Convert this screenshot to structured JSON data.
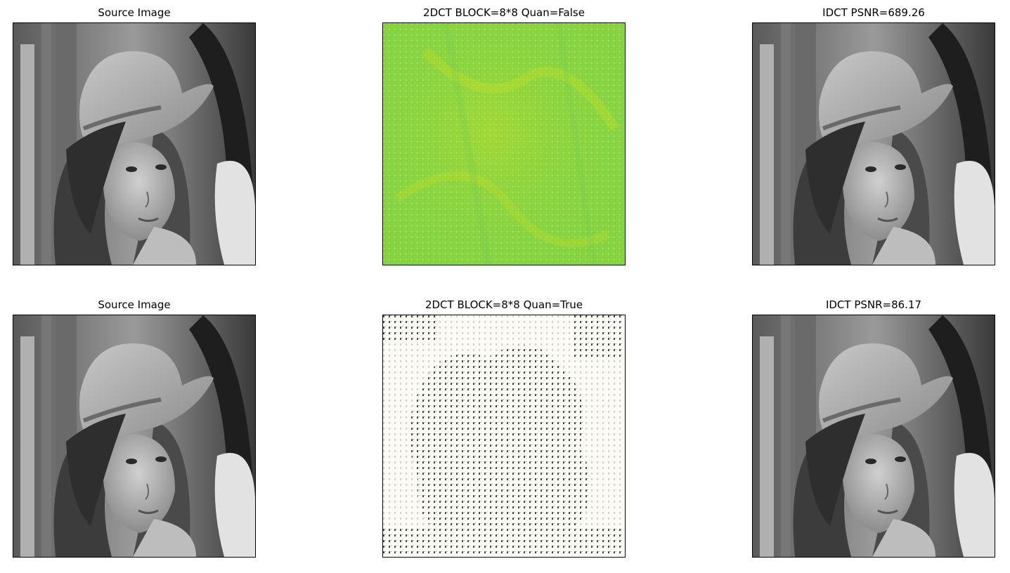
{
  "figure": {
    "panels": [
      {
        "title": "Source Image",
        "kind": "grayscale-photo"
      },
      {
        "title": "2DCT BLOCK=8*8 Quan=False",
        "kind": "dct-coefficients"
      },
      {
        "title": "IDCT PSNR=689.26",
        "kind": "grayscale-photo"
      },
      {
        "title": "Source Image",
        "kind": "grayscale-photo"
      },
      {
        "title": "2DCT BLOCK=8*8 Quan=True",
        "kind": "quantized-dct-coefficients"
      },
      {
        "title": "IDCT PSNR=86.17",
        "kind": "grayscale-photo"
      }
    ]
  },
  "colors": {
    "dct_background": "#86d549",
    "dct_highlight": "#c7e020",
    "quantized_background": "#fffdf5",
    "quantized_mark": "#2a5d7a"
  }
}
